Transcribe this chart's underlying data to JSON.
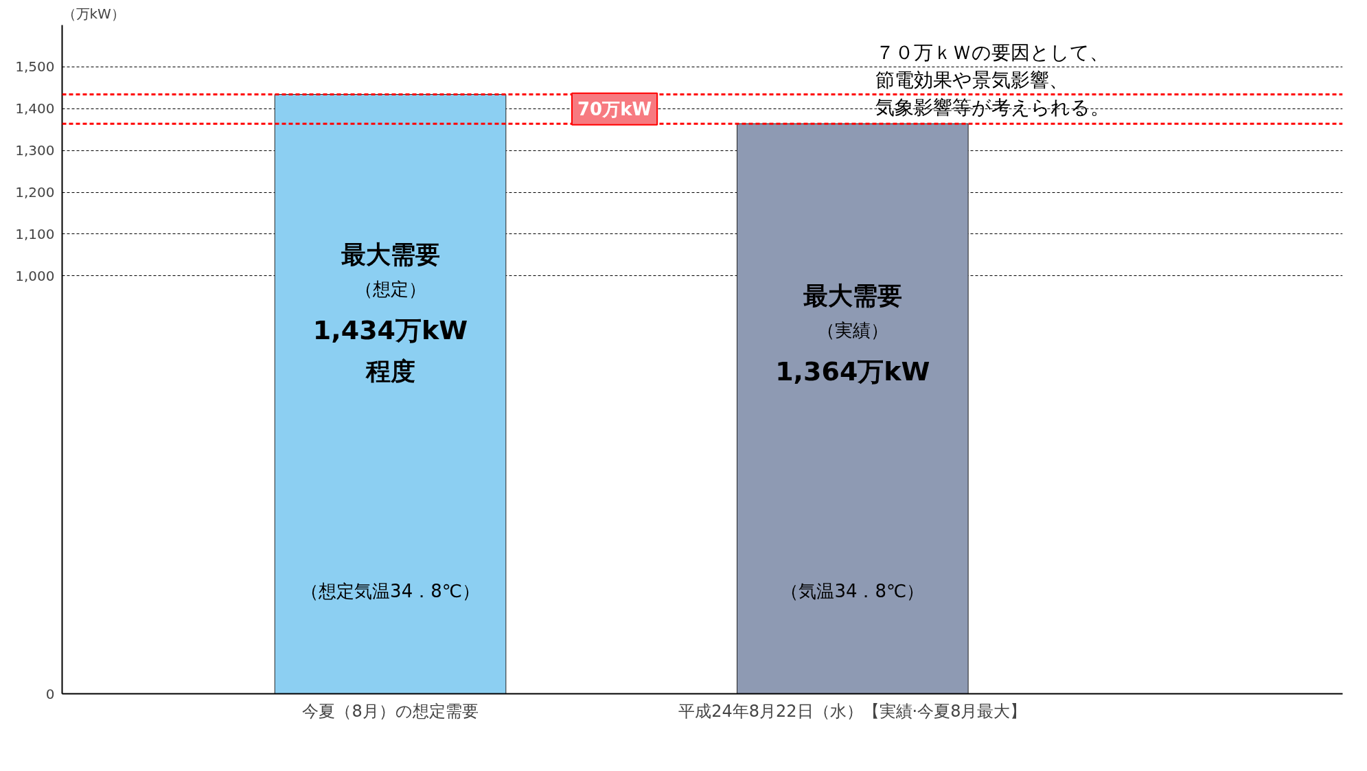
{
  "chart_data": {
    "type": "bar",
    "ylabel": "（万kW）",
    "categories": [
      "今夏（8月）の想定需要",
      "平成24年8月22日（水）【実績·今夏8月最大】"
    ],
    "values": [
      1434,
      1364
    ],
    "colors": [
      "#8ccff2",
      "#8e9ab3"
    ],
    "ylim": [
      0,
      1600
    ],
    "yticks": [
      {
        "value": 0,
        "label": "0"
      },
      {
        "value": 1000,
        "label": "1,000"
      },
      {
        "value": 1100,
        "label": "1,100"
      },
      {
        "value": 1200,
        "label": "1,200"
      },
      {
        "value": 1300,
        "label": "1,300"
      },
      {
        "value": 1400,
        "label": "1,400"
      },
      {
        "value": 1500,
        "label": "1,500"
      }
    ],
    "grid": "y",
    "ref_lines": [
      {
        "axis": "y",
        "value": 1434,
        "label": null,
        "color": "#ff0000",
        "line_style": "dashed"
      },
      {
        "axis": "y",
        "value": 1364,
        "label": null,
        "color": "#ff0000",
        "line_style": "dashed"
      }
    ],
    "annotations": [
      "最大需要",
      "（想定）",
      "1,434万kW",
      "程度",
      "（想定気温34．8℃）",
      "最大需要",
      "（実績）",
      "1,364万kW",
      "（気温34．8℃）",
      "70万kW",
      "７０万ｋＷの要因として、",
      "節電効果や景気影響、",
      "気象影響等が考えられる。"
    ]
  }
}
